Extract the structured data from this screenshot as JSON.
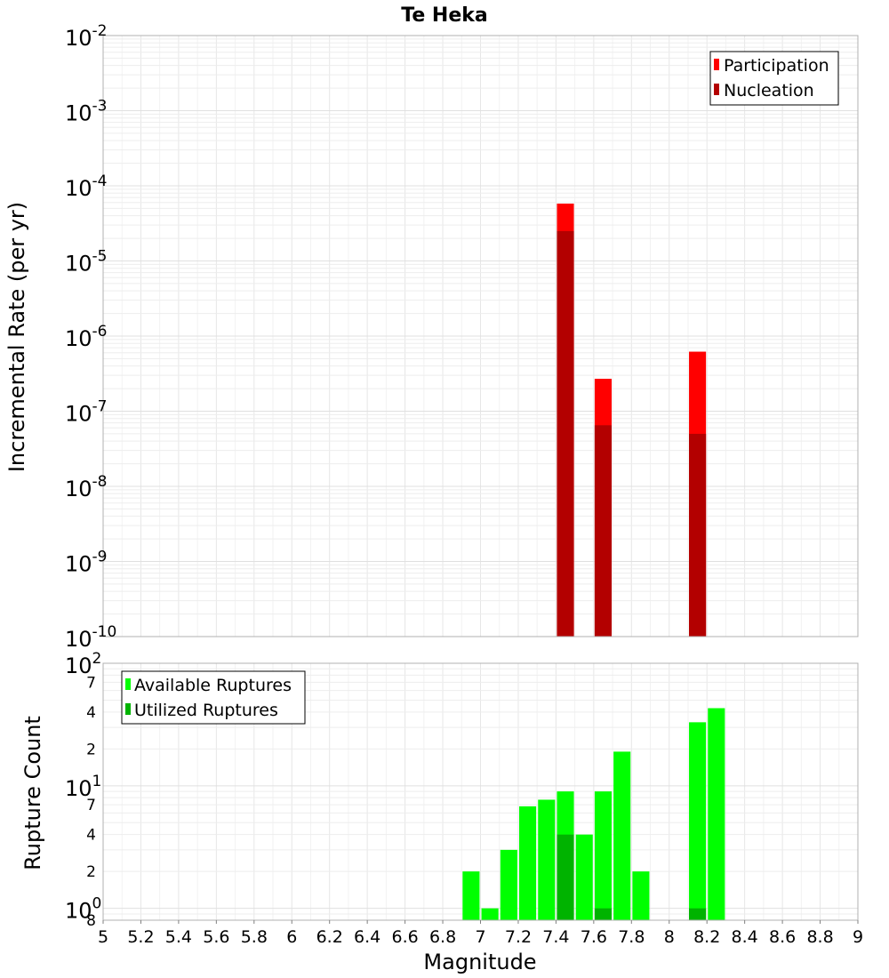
{
  "chart_data": [
    {
      "type": "bar",
      "title": "Te Heka",
      "xlabel": "",
      "ylabel": "Incremental Rate (per yr)",
      "yscale": "log",
      "ylim": [
        1e-10,
        0.01
      ],
      "xlim": [
        5,
        9
      ],
      "grid": true,
      "legend_position": "top-right",
      "bar_width": 0.09,
      "y_ticks": [
        {
          "base": "10",
          "exp": "-10",
          "value": 1e-10
        },
        {
          "base": "10",
          "exp": "-9",
          "value": 1e-09
        },
        {
          "base": "10",
          "exp": "-8",
          "value": 1e-08
        },
        {
          "base": "10",
          "exp": "-7",
          "value": 1e-07
        },
        {
          "base": "10",
          "exp": "-6",
          "value": 1e-06
        },
        {
          "base": "10",
          "exp": "-5",
          "value": 1e-05
        },
        {
          "base": "10",
          "exp": "-4",
          "value": 0.0001
        },
        {
          "base": "10",
          "exp": "-3",
          "value": 0.001
        },
        {
          "base": "10",
          "exp": "-2",
          "value": 0.01
        }
      ],
      "series": [
        {
          "name": "Participation",
          "color": "#ff0000",
          "x": [
            7.45,
            7.65,
            8.15
          ],
          "values": [
            5.8e-05,
            2.7e-07,
            6.2e-07
          ]
        },
        {
          "name": "Nucleation",
          "color": "#b30000",
          "x": [
            7.45,
            7.65,
            8.15
          ],
          "values": [
            2.5e-05,
            6.5e-08,
            5e-08
          ]
        }
      ]
    },
    {
      "type": "bar",
      "title": "",
      "xlabel": "Magnitude",
      "ylabel": "Rupture Count",
      "yscale": "log",
      "ylim": [
        0.8,
        100
      ],
      "xlim": [
        5,
        9
      ],
      "grid": true,
      "legend_position": "top-left",
      "bar_width": 0.09,
      "x_ticks": [
        "5",
        "5.2",
        "5.4",
        "5.6",
        "5.8",
        "6",
        "6.2",
        "6.4",
        "6.6",
        "6.8",
        "7",
        "7.2",
        "7.4",
        "7.6",
        "7.8",
        "8",
        "8.2",
        "8.4",
        "8.6",
        "8.8",
        "9"
      ],
      "y_major_ticks": [
        {
          "base": "10",
          "exp": "0",
          "value": 1
        },
        {
          "base": "10",
          "exp": "1",
          "value": 10
        },
        {
          "base": "10",
          "exp": "2",
          "value": 100
        }
      ],
      "y_minor_ticks": [
        {
          "label": "8",
          "value": 0.8
        },
        {
          "label": "2",
          "value": 2
        },
        {
          "label": "4",
          "value": 4
        },
        {
          "label": "7",
          "value": 7
        },
        {
          "label": "2",
          "value": 20
        },
        {
          "label": "4",
          "value": 40
        },
        {
          "label": "7",
          "value": 70
        }
      ],
      "series": [
        {
          "name": "Available Ruptures",
          "color": "#00ff00",
          "x": [
            6.95,
            7.05,
            7.15,
            7.25,
            7.35,
            7.45,
            7.55,
            7.65,
            7.75,
            7.85,
            8.15,
            8.25
          ],
          "values": [
            2,
            1,
            3,
            6.8,
            7.7,
            9,
            4,
            9,
            19,
            2,
            33,
            43
          ]
        },
        {
          "name": "Utilized Ruptures",
          "color": "#00b300",
          "x": [
            7.45,
            7.65,
            8.15
          ],
          "values": [
            4,
            1,
            1
          ]
        }
      ]
    }
  ]
}
